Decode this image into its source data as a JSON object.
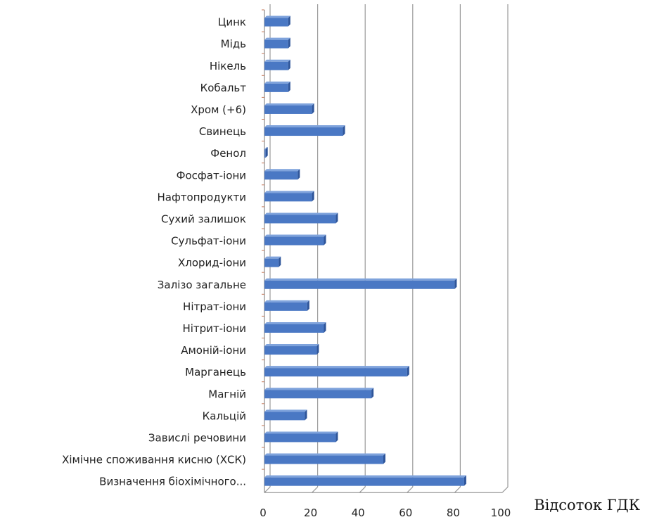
{
  "chart_data": {
    "type": "bar",
    "orientation": "horizontal",
    "categories": [
      "Цинк",
      "Мідь",
      "Нікель",
      "Кобальт",
      "Хром (+6)",
      "Свинець",
      "Фенол",
      "Фосфат-іони",
      "Нафтопродукти",
      "Сухий залишок",
      "Сульфат-іони",
      "Хлорид-іони",
      "Залізо загальне",
      "Нітрат-іони",
      "Нітрит-іони",
      "Амоній-іони",
      "Марганець",
      "Магній",
      "Кальцій",
      "Завислі речовини",
      "Хімічне споживання кисню (ХСК)",
      "Визначення біохімічного..."
    ],
    "values": [
      10,
      10,
      10,
      10,
      20,
      33,
      0.5,
      14,
      20,
      30,
      25,
      6,
      80,
      18,
      25,
      22,
      60,
      45,
      17,
      30,
      50,
      84
    ],
    "xlabel": "Відсоток ГДК",
    "xlim": [
      0,
      100
    ],
    "xticks": [
      0,
      20,
      40,
      60,
      80,
      100
    ],
    "grid": true,
    "bar_color": "#4a78c4",
    "bar_color_dark": "#2e559a",
    "grid_color": "#9a9a9a"
  }
}
